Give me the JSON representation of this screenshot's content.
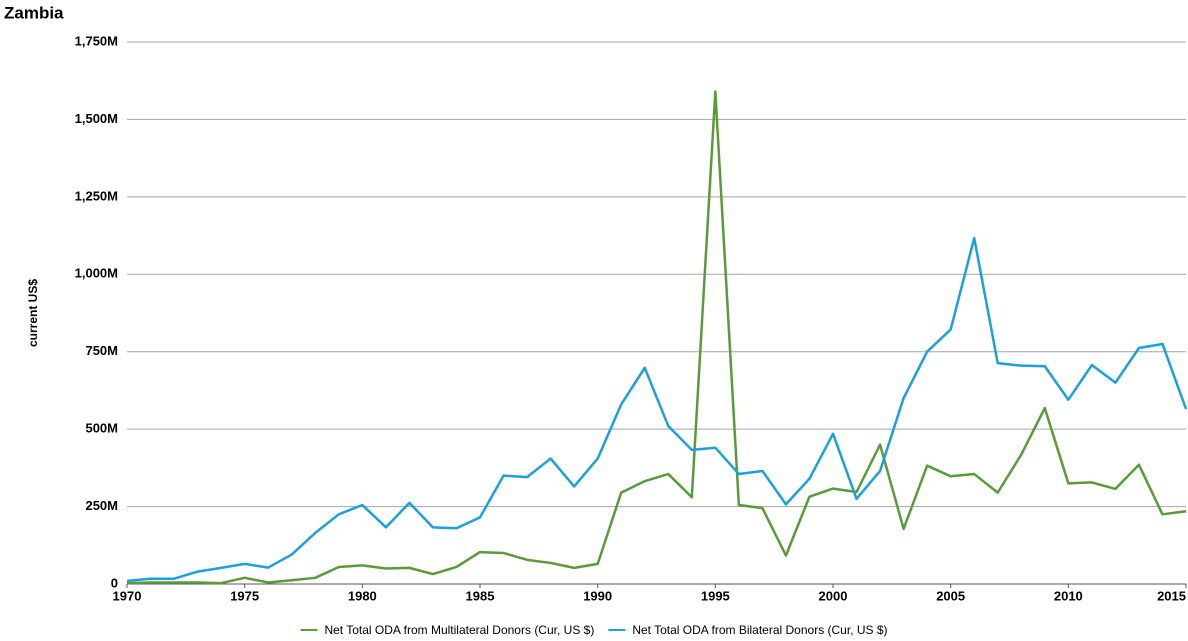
{
  "chart_data": {
    "type": "line",
    "title": "Zambia",
    "y_label": "current US$",
    "x": [
      1970,
      1971,
      1972,
      1973,
      1974,
      1975,
      1976,
      1977,
      1978,
      1979,
      1980,
      1981,
      1982,
      1983,
      1984,
      1985,
      1986,
      1987,
      1988,
      1989,
      1990,
      1991,
      1992,
      1993,
      1994,
      1995,
      1996,
      1997,
      1998,
      1999,
      2000,
      2001,
      2002,
      2003,
      2004,
      2005,
      2006,
      2007,
      2008,
      2009,
      2010,
      2011,
      2012,
      2013,
      2014,
      2015
    ],
    "series": [
      {
        "name": "Net Total ODA from Multilateral Donors (Cur, US $)",
        "color": "#5a9a3b",
        "values": [
          3,
          5,
          5,
          5,
          3,
          20,
          5,
          12,
          20,
          55,
          60,
          50,
          52,
          32,
          55,
          103,
          100,
          78,
          68,
          52,
          65,
          295,
          332,
          355,
          280,
          1590,
          255,
          245,
          92,
          282,
          308,
          297,
          450,
          178,
          382,
          348,
          355,
          295,
          418,
          568,
          325,
          328,
          307,
          385,
          225,
          235
        ]
      },
      {
        "name": "Net Total ODA from Bilateral Donors (Cur, US $)",
        "color": "#1ca0dc",
        "values": [
          10,
          17,
          17,
          40,
          52,
          65,
          53,
          95,
          165,
          225,
          255,
          183,
          262,
          183,
          180,
          215,
          350,
          345,
          405,
          315,
          405,
          580,
          698,
          510,
          433,
          440,
          355,
          365,
          257,
          340,
          485,
          275,
          365,
          600,
          750,
          822,
          1117,
          713,
          705,
          703,
          595,
          707,
          650,
          762,
          775,
          565
        ]
      }
    ],
    "xlim": [
      1970,
      2015
    ],
    "xticks": [
      1970,
      1975,
      1980,
      1985,
      1990,
      1995,
      2000,
      2005,
      2010,
      2015
    ],
    "ylim": [
      0,
      1750
    ],
    "yticks": [
      0,
      {
        "value": 250,
        "label": "250M"
      },
      {
        "value": 500,
        "label": "500M"
      },
      {
        "value": 750,
        "label": "750M"
      },
      {
        "value": 1000,
        "label": "1,000M"
      },
      {
        "value": 1250,
        "label": "1,250M"
      },
      {
        "value": 1500,
        "label": "1,500M"
      },
      {
        "value": 1750,
        "label": "1,750M"
      }
    ],
    "grid": true,
    "legend": "bottom"
  }
}
